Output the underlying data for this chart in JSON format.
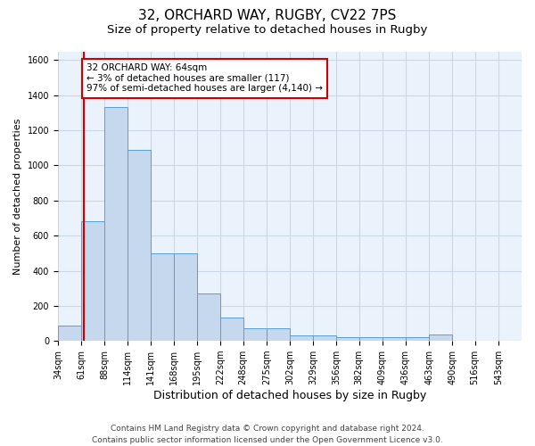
{
  "title1": "32, ORCHARD WAY, RUGBY, CV22 7PS",
  "title2": "Size of property relative to detached houses in Rugby",
  "xlabel": "Distribution of detached houses by size in Rugby",
  "ylabel": "Number of detached properties",
  "bar_edges": [
    34,
    61,
    88,
    114,
    141,
    168,
    195,
    222,
    248,
    275,
    302,
    329,
    356,
    382,
    409,
    436,
    463,
    490,
    516,
    543,
    570
  ],
  "bar_heights": [
    90,
    680,
    1330,
    1090,
    500,
    500,
    270,
    135,
    70,
    70,
    30,
    30,
    20,
    20,
    20,
    20,
    35,
    0,
    0,
    0
  ],
  "bar_color": "#c5d8ed",
  "bar_edge_color": "#5a9fd4",
  "grid_color": "#c8d8e8",
  "bg_color": "#eaf2fb",
  "property_size": 64,
  "vline_color": "#cc0000",
  "annotation_text": "32 ORCHARD WAY: 64sqm\n← 3% of detached houses are smaller (117)\n97% of semi-detached houses are larger (4,140) →",
  "annotation_box_color": "#cc0000",
  "ylim": [
    0,
    1650
  ],
  "yticks": [
    0,
    200,
    400,
    600,
    800,
    1000,
    1200,
    1400,
    1600
  ],
  "footer_text": "Contains HM Land Registry data © Crown copyright and database right 2024.\nContains public sector information licensed under the Open Government Licence v3.0.",
  "title1_fontsize": 11,
  "title2_fontsize": 9.5,
  "xlabel_fontsize": 9,
  "ylabel_fontsize": 8,
  "tick_fontsize": 7,
  "annotation_fontsize": 7.5,
  "footer_fontsize": 6.5
}
